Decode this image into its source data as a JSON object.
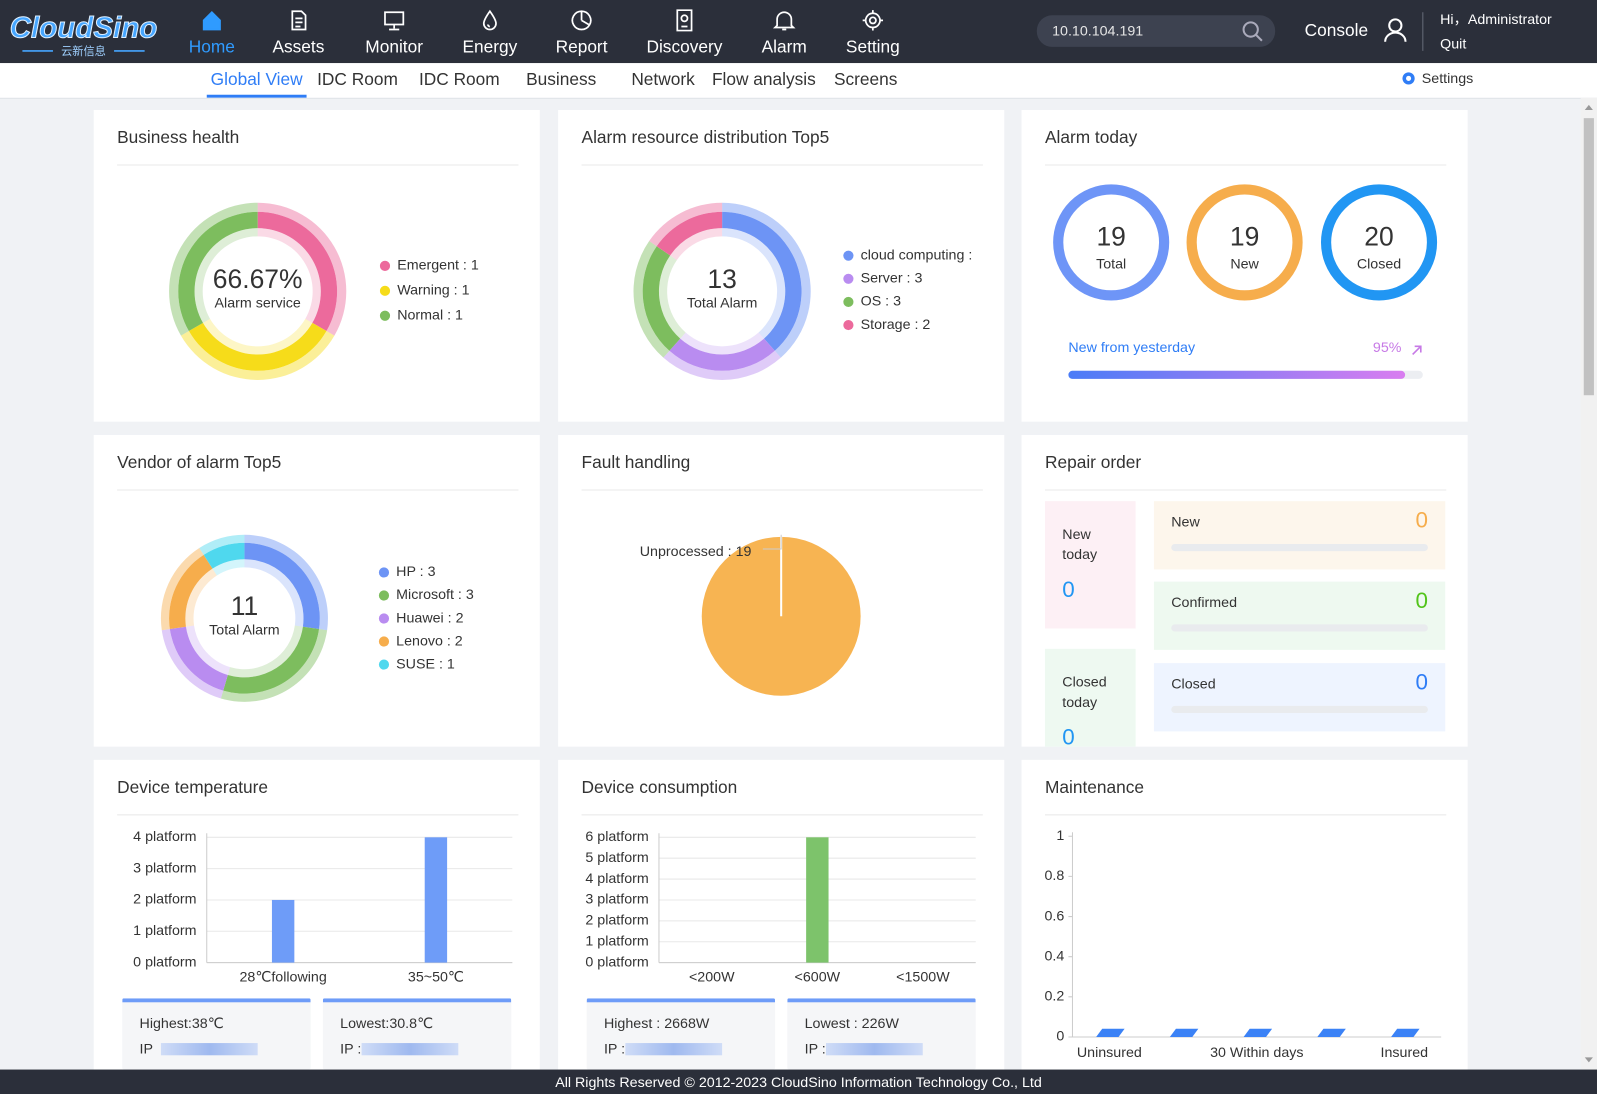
{
  "nav": {
    "logo": "CloudSino",
    "logo_sub": "云新信息",
    "items": [
      "Home",
      "Assets",
      "Monitor",
      "Energy",
      "Report",
      "Discovery",
      "Alarm",
      "Setting"
    ],
    "search": "10.10.104.191",
    "console": "Console",
    "greeting": "Hi，Administrator",
    "quit": "Quit"
  },
  "tabs": {
    "items": [
      "Global View",
      "IDC Room",
      "IDC Room",
      "Business",
      "Network",
      "Flow analysis",
      "Screens"
    ],
    "settings": "Settings"
  },
  "business_health": {
    "title": "Business health",
    "chart": {
      "type": "donut",
      "center_value": "66.67%",
      "center_label": "Alarm service",
      "values": [
        1,
        1,
        1
      ],
      "value_labels": [
        "Emergent : 1",
        "Warning : 1",
        "Normal : 1"
      ],
      "colors": [
        "#ec6a9c",
        "#f6dc1a",
        "#7dbd5e"
      ]
    }
  },
  "alarm_resource": {
    "title": "Alarm resource distribution Top5",
    "chart": {
      "type": "donut",
      "center_value": 13,
      "center_label": "Total Alarm",
      "values": [
        5,
        3,
        3,
        2
      ],
      "value_labels": [
        "cloud computing :",
        "Server : 3",
        "OS : 3",
        "Storage : 2"
      ],
      "colors": [
        "#6d94f5",
        "#b98cf0",
        "#7dbd5e",
        "#ec6a9c"
      ]
    }
  },
  "alarm_today": {
    "title": "Alarm today",
    "counters": [
      {
        "value": 19,
        "label": "Total",
        "color": "#6e95f7"
      },
      {
        "value": 19,
        "label": "New",
        "color": "#f6ad4c"
      },
      {
        "value": 20,
        "label": "Closed",
        "color": "#2196f3"
      }
    ],
    "progress": {
      "label": "New from yesterday",
      "value": 95,
      "value_label": "95%"
    }
  },
  "vendor": {
    "title": "Vendor of alarm Top5",
    "chart": {
      "type": "donut",
      "center_value": 11,
      "center_label": "Total Alarm",
      "values": [
        3,
        3,
        2,
        2,
        1
      ],
      "value_labels": [
        "HP : 3",
        "Microsoft : 3",
        "Huawei : 2",
        "Lenovo : 2",
        "SUSE : 1"
      ],
      "colors": [
        "#6d94f5",
        "#7dbd5e",
        "#b98cf0",
        "#f6ad4c",
        "#4fd8ee"
      ]
    }
  },
  "fault": {
    "title": "Fault handling",
    "chart": {
      "type": "pie",
      "values": [
        19
      ],
      "value_labels": [
        "Unprocessed : 19"
      ],
      "colors": [
        "#f7b452"
      ]
    }
  },
  "repair_order": {
    "title": "Repair order",
    "today": [
      {
        "label": "New today",
        "value": 0
      },
      {
        "label": "Closed today",
        "value": 0
      }
    ],
    "status": [
      {
        "label": "New",
        "value": 0,
        "color": "#f6ad4c"
      },
      {
        "label": "Confirmed",
        "value": 0,
        "color": "#52c41a"
      },
      {
        "label": "Closed",
        "value": 0,
        "color": "#2f7df6"
      }
    ]
  },
  "temperature": {
    "title": "Device temperature",
    "chart": {
      "type": "bar",
      "categories": [
        "28℃following",
        "35~50℃"
      ],
      "values": [
        2,
        4
      ],
      "color": "#6e9cf8",
      "ylim": [
        0,
        4
      ],
      "yticks": [
        {
          "value": 0,
          "label": "0 platform"
        },
        {
          "value": 1,
          "label": "1 platform"
        },
        {
          "value": 2,
          "label": "2 platform"
        },
        {
          "value": 3,
          "label": "3 platform"
        },
        {
          "value": 4,
          "label": "4 platform"
        }
      ],
      "grid": true
    },
    "stats": [
      {
        "text": "Highest:38℃",
        "ip": "IP"
      },
      {
        "text": "Lowest:30.8℃",
        "ip": "IP :"
      }
    ]
  },
  "consumption": {
    "title": "Device consumption",
    "chart": {
      "type": "bar",
      "categories": [
        "<200W",
        "<600W",
        "<1500W"
      ],
      "values": [
        0,
        6,
        0
      ],
      "color": "#7dc36b",
      "ylim": [
        0,
        6
      ],
      "yticks": [
        {
          "value": 0,
          "label": "0 platform"
        },
        {
          "value": 1,
          "label": "1 platform"
        },
        {
          "value": 2,
          "label": "2 platform"
        },
        {
          "value": 3,
          "label": "3 platform"
        },
        {
          "value": 4,
          "label": "4 platform"
        },
        {
          "value": 5,
          "label": "5 platform"
        },
        {
          "value": 6,
          "label": "6 platform"
        }
      ],
      "grid": true
    },
    "stats": [
      {
        "text": "Highest : 2668W",
        "ip": "IP :"
      },
      {
        "text": "Lowest : 226W",
        "ip": "IP :"
      }
    ]
  },
  "maintenance": {
    "title": "Maintenance",
    "chart": {
      "type": "bar3d",
      "categories": [
        "Uninsured",
        null,
        "30 Within days",
        null,
        "Insured"
      ],
      "values": [
        0,
        0,
        0,
        0,
        0
      ],
      "color": "#3b82f6",
      "ylim": [
        0,
        1
      ],
      "yticks": [
        0,
        0.2,
        0.4,
        0.6,
        0.8,
        1
      ],
      "grid": false
    }
  },
  "footer": "All Rights Reserved © 2012-2023  CloudSino Information Technology Co., Ltd"
}
